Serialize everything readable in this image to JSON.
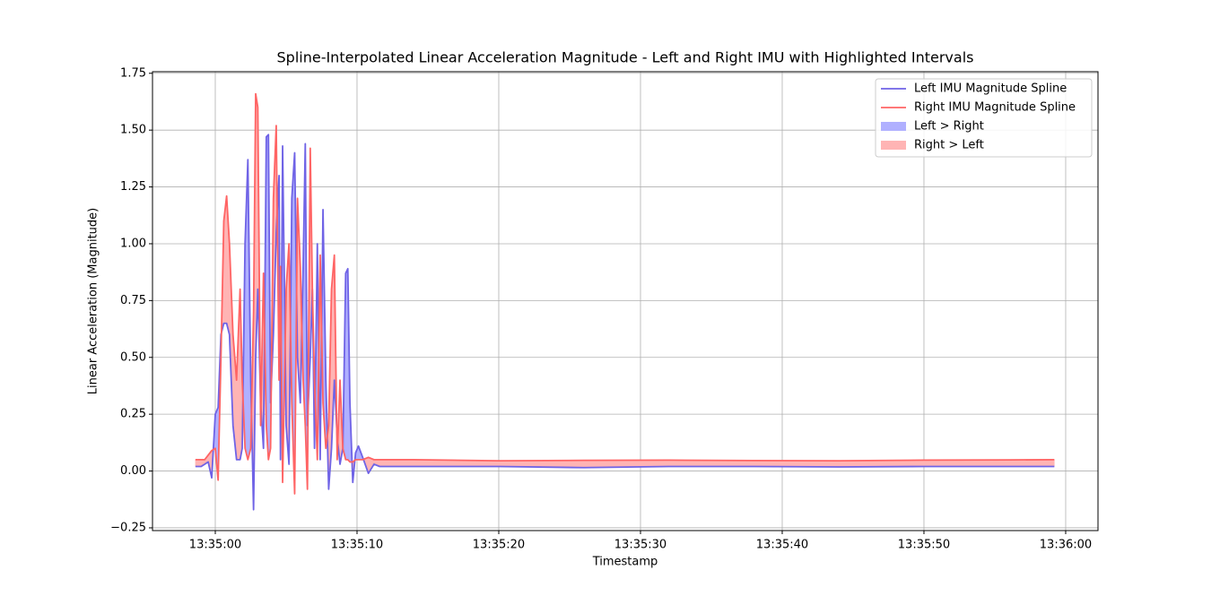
{
  "chart_data": {
    "type": "line",
    "title": "Spline-Interpolated Linear Acceleration Magnitude - Left and Right IMU with Highlighted Intervals",
    "x_label": "Timestamp",
    "y_label": "Linear Acceleration (Magnitude)",
    "x": [
      "13:34:58.60",
      "13:34:59.00",
      "13:34:59.25",
      "13:34:59.50",
      "13:34:59.75",
      "13:35:00.00",
      "13:35:00.20",
      "13:35:00.40",
      "13:35:00.60",
      "13:35:00.80",
      "13:35:01.00",
      "13:35:01.25",
      "13:35:01.50",
      "13:35:01.75",
      "13:35:01.90",
      "13:35:02.10",
      "13:35:02.30",
      "13:35:02.50",
      "13:35:02.70",
      "13:35:02.85",
      "13:35:03.00",
      "13:35:03.20",
      "13:35:03.40",
      "13:35:03.60",
      "13:35:03.75",
      "13:35:03.90",
      "13:35:04.10",
      "13:35:04.30",
      "13:35:04.50",
      "13:35:04.60",
      "13:35:04.75",
      "13:35:05.00",
      "13:35:05.20",
      "13:35:05.40",
      "13:35:05.60",
      "13:35:05.80",
      "13:35:06.00",
      "13:35:06.20",
      "13:35:06.35",
      "13:35:06.50",
      "13:35:06.70",
      "13:35:06.85",
      "13:35:07.00",
      "13:35:07.20",
      "13:35:07.40",
      "13:35:07.60",
      "13:35:07.80",
      "13:35:08.00",
      "13:35:08.20",
      "13:35:08.40",
      "13:35:08.60",
      "13:35:08.80",
      "13:35:09.00",
      "13:35:09.20",
      "13:35:09.35",
      "13:35:09.50",
      "13:35:09.70",
      "13:35:09.90",
      "13:35:10.10",
      "13:35:10.40",
      "13:35:10.80",
      "13:35:11.20",
      "13:35:11.60",
      "13:35:14.00",
      "13:35:20.00",
      "13:35:26.00",
      "13:35:32.00",
      "13:35:38.00",
      "13:35:44.00",
      "13:35:50.00",
      "13:35:56.00",
      "13:35:59.20"
    ],
    "series": [
      {
        "name": "Left IMU Magnitude Spline",
        "color": "#6f63e6",
        "values": [
          0.02,
          0.02,
          0.03,
          0.04,
          -0.03,
          0.25,
          0.28,
          0.6,
          0.65,
          0.65,
          0.6,
          0.2,
          0.05,
          0.05,
          0.1,
          1.0,
          1.37,
          0.4,
          -0.17,
          0.5,
          0.8,
          0.3,
          0.1,
          1.47,
          1.48,
          0.3,
          0.6,
          1.05,
          1.3,
          0.05,
          1.43,
          0.2,
          0.03,
          1.2,
          1.4,
          0.5,
          0.3,
          0.9,
          1.44,
          0.2,
          0.5,
          0.8,
          0.1,
          1.0,
          0.05,
          1.15,
          0.4,
          -0.08,
          0.1,
          0.4,
          0.15,
          0.03,
          0.1,
          0.87,
          0.89,
          0.3,
          -0.05,
          0.08,
          0.11,
          0.06,
          -0.01,
          0.03,
          0.02,
          0.02,
          0.02,
          0.015,
          0.02,
          0.02,
          0.018,
          0.02,
          0.02,
          0.02
        ]
      },
      {
        "name": "Right IMU Magnitude Spline",
        "color": "#ff6464",
        "values": [
          0.05,
          0.05,
          0.05,
          0.07,
          0.09,
          0.1,
          -0.04,
          0.5,
          1.1,
          1.21,
          1.0,
          0.6,
          0.4,
          0.8,
          0.4,
          0.1,
          0.05,
          0.1,
          0.7,
          1.66,
          1.6,
          0.2,
          0.87,
          0.2,
          0.05,
          0.1,
          1.2,
          1.52,
          0.4,
          0.9,
          -0.05,
          0.8,
          1.0,
          0.3,
          -0.1,
          1.2,
          0.9,
          0.4,
          0.2,
          -0.08,
          1.42,
          0.8,
          0.4,
          0.05,
          0.95,
          0.3,
          0.1,
          0.2,
          0.8,
          0.95,
          0.05,
          0.4,
          0.1,
          0.05,
          0.05,
          0.04,
          0.04,
          0.05,
          0.05,
          0.05,
          0.06,
          0.05,
          0.05,
          0.05,
          0.045,
          0.047,
          0.048,
          0.046,
          0.045,
          0.048,
          0.049,
          0.05
        ]
      }
    ],
    "fills": [
      {
        "name": "Left > Right",
        "color": "#b0b0ff"
      },
      {
        "name": "Right > Left",
        "color": "#ffb4b4"
      }
    ],
    "xlim": [
      "13:34:55.57",
      "13:36:02.28"
    ],
    "xticks": [
      "13:35:00",
      "13:35:10",
      "13:35:20",
      "13:35:30",
      "13:35:40",
      "13:35:50",
      "13:36:00"
    ],
    "ylim": [
      -0.262,
      1.757
    ],
    "yticks": [
      {
        "value": -0.25,
        "label": "−0.25"
      },
      {
        "value": 0,
        "label": "0.00"
      },
      0.25,
      {
        "value": 0.5,
        "label": "0.50"
      },
      0.75,
      {
        "value": 1,
        "label": "1.00"
      },
      1.25,
      {
        "value": 1.5,
        "label": "1.50"
      },
      1.75
    ],
    "grid": true,
    "legend": "upper right"
  }
}
